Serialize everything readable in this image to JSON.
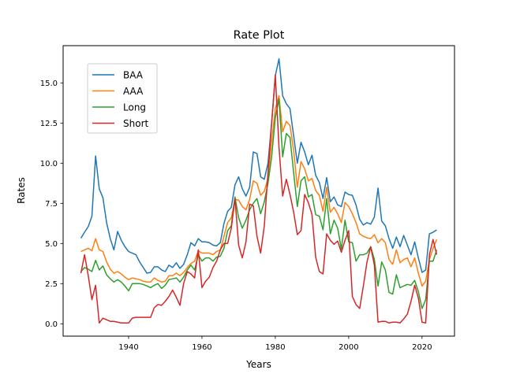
{
  "chart_data": {
    "type": "line",
    "title": "Rate Plot",
    "xlabel": "Years",
    "ylabel": "Rates",
    "x_start": 1927,
    "x_end": 2024,
    "xlim": [
      1922.15,
      2028.85
    ],
    "ylim": [
      -0.77,
      17.32
    ],
    "xticks": [
      1940,
      1960,
      1980,
      2000,
      2020
    ],
    "xtick_labels": [
      "1940",
      "1960",
      "1980",
      "2000",
      "2020"
    ],
    "yticks": [
      0,
      2.5,
      5,
      7.5,
      10,
      12.5,
      15
    ],
    "ytick_labels": [
      "0.0",
      "2.5",
      "5.0",
      "7.5",
      "10.0",
      "12.5",
      "15.0"
    ],
    "grid": false,
    "legend_position": "upper-left",
    "series": [
      {
        "name": "BAA",
        "color": "#1f77b4",
        "values": [
          5.33,
          5.7,
          6.05,
          6.7,
          10.45,
          8.4,
          7.85,
          6.3,
          5.3,
          4.6,
          5.75,
          5.2,
          4.8,
          4.5,
          4.4,
          4.3,
          3.85,
          3.5,
          3.15,
          3.2,
          3.55,
          3.55,
          3.35,
          3.25,
          3.65,
          3.5,
          3.8,
          3.45,
          3.7,
          4.3,
          5.05,
          4.85,
          5.3,
          5.1,
          5.1,
          5.05,
          4.9,
          4.85,
          5.05,
          6.25,
          7.0,
          7.25,
          8.65,
          9.15,
          8.4,
          7.95,
          8.5,
          10.7,
          10.6,
          9.15,
          9.0,
          10.0,
          12.5,
          15.45,
          16.5,
          14.2,
          13.7,
          13.4,
          11.7,
          10.0,
          11.3,
          10.7,
          9.9,
          10.5,
          9.25,
          8.8,
          7.8,
          9.1,
          7.6,
          7.9,
          7.4,
          7.3,
          8.2,
          8.05,
          8.0,
          7.4,
          6.5,
          6.15,
          6.3,
          6.2,
          6.65,
          8.45,
          6.4,
          6.1,
          5.3,
          4.7,
          5.4,
          4.8,
          5.5,
          4.9,
          4.3,
          5.1,
          4.1,
          3.2,
          3.35,
          5.6,
          5.7,
          5.85
        ]
      },
      {
        "name": "AAA",
        "color": "#ff7f0e",
        "values": [
          4.5,
          4.6,
          4.7,
          4.55,
          5.3,
          4.6,
          4.5,
          3.85,
          3.4,
          3.15,
          3.25,
          3.1,
          2.9,
          2.75,
          2.85,
          2.8,
          2.75,
          2.65,
          2.6,
          2.6,
          2.85,
          2.7,
          2.6,
          2.65,
          3.0,
          3.0,
          3.15,
          3.0,
          3.2,
          3.5,
          3.75,
          3.9,
          4.55,
          4.4,
          4.4,
          4.4,
          4.3,
          4.5,
          4.6,
          5.45,
          6.3,
          6.6,
          7.75,
          7.7,
          7.3,
          7.1,
          7.75,
          8.9,
          8.75,
          8.0,
          8.25,
          9.05,
          11.35,
          13.4,
          14.2,
          11.95,
          12.6,
          12.35,
          10.8,
          8.5,
          10.1,
          9.65,
          8.9,
          9.05,
          8.3,
          8.0,
          7.0,
          8.5,
          6.95,
          7.25,
          6.85,
          6.3,
          7.55,
          7.3,
          6.85,
          6.3,
          5.6,
          5.45,
          5.35,
          5.3,
          5.55,
          5.05,
          5.3,
          5.05,
          4.0,
          3.7,
          4.6,
          3.8,
          4.0,
          4.1,
          3.55,
          4.1,
          3.15,
          2.35,
          2.65,
          4.0,
          4.7,
          5.25
        ]
      },
      {
        "name": "Long",
        "color": "#2ca02c",
        "values": [
          3.25,
          3.5,
          3.4,
          3.25,
          3.95,
          3.35,
          3.6,
          3.05,
          2.8,
          2.6,
          2.75,
          2.6,
          2.35,
          2.05,
          2.5,
          2.5,
          2.5,
          2.45,
          2.35,
          2.25,
          2.4,
          2.5,
          2.2,
          2.4,
          2.75,
          2.8,
          2.85,
          2.6,
          2.9,
          3.35,
          3.65,
          3.35,
          4.3,
          3.9,
          4.1,
          4.1,
          3.9,
          4.15,
          4.2,
          4.7,
          5.8,
          6.1,
          7.9,
          6.6,
          5.95,
          6.45,
          7.1,
          7.5,
          7.8,
          6.85,
          7.6,
          8.75,
          10.4,
          12.85,
          14.0,
          10.4,
          11.85,
          11.6,
          9.4,
          7.3,
          8.9,
          9.15,
          7.9,
          8.05,
          6.8,
          6.7,
          5.85,
          7.8,
          5.6,
          6.45,
          5.95,
          4.65,
          6.45,
          5.1,
          5.05,
          3.9,
          4.3,
          4.3,
          4.4,
          4.8,
          4.0,
          2.35,
          3.85,
          3.35,
          1.95,
          1.85,
          3.05,
          2.25,
          2.35,
          2.45,
          2.4,
          2.7,
          2.0,
          0.95,
          1.5,
          3.9,
          3.9,
          4.6
        ]
      },
      {
        "name": "Short",
        "color": "#d62728",
        "values": [
          3.15,
          4.3,
          3.0,
          1.5,
          2.4,
          0.05,
          0.35,
          0.25,
          0.15,
          0.15,
          0.1,
          0.05,
          0.05,
          0.05,
          0.35,
          0.4,
          0.4,
          0.4,
          0.4,
          0.4,
          1.0,
          1.2,
          1.15,
          1.4,
          1.7,
          2.1,
          1.65,
          1.15,
          2.5,
          3.25,
          3.1,
          2.85,
          4.6,
          2.25,
          2.65,
          2.9,
          3.5,
          3.9,
          4.6,
          5.0,
          5.0,
          5.95,
          7.8,
          4.9,
          4.1,
          5.1,
          7.45,
          7.35,
          5.45,
          4.4,
          6.1,
          9.4,
          12.5,
          15.5,
          11.0,
          7.95,
          9.0,
          8.05,
          6.95,
          5.55,
          5.8,
          8.05,
          7.55,
          6.8,
          4.15,
          3.25,
          3.1,
          5.6,
          5.2,
          4.95,
          5.15,
          4.45,
          5.2,
          5.8,
          1.7,
          1.2,
          0.95,
          2.35,
          3.85,
          4.8,
          3.65,
          0.1,
          0.15,
          0.15,
          0.05,
          0.1,
          0.1,
          0.05,
          0.3,
          0.6,
          1.4,
          2.4,
          1.6,
          0.1,
          0.05,
          4.3,
          5.25,
          4.3
        ]
      }
    ]
  }
}
